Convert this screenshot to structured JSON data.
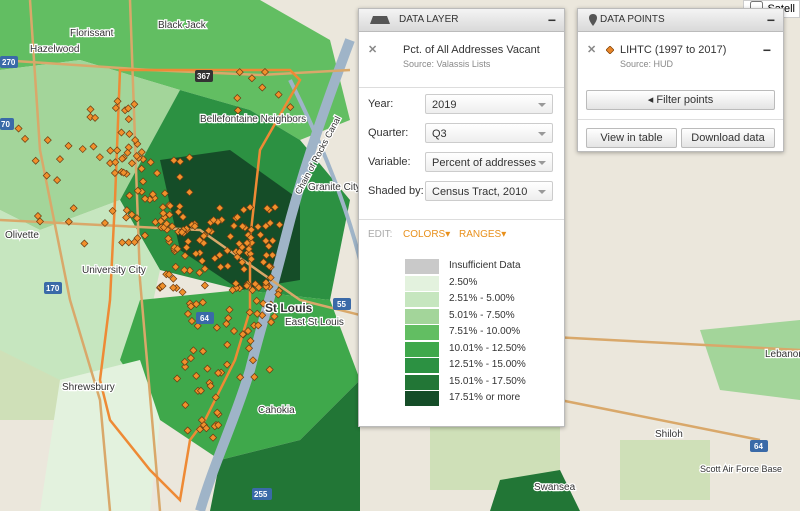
{
  "map_labels": [
    "Black Jack",
    "Florissant",
    "Hazelwood",
    "367",
    "270",
    "Bellefontaine Neighbors",
    "Granite City",
    "Olivette",
    "University City",
    "170",
    "70",
    "St Louis",
    "East St Louis",
    "55",
    "64",
    "Shrewsbury",
    "Cahokia",
    "255",
    "Swansea",
    "Shiloh",
    "Scott Air Force Base",
    "Lebanon",
    "64",
    "Chain of Rocks Canal"
  ],
  "satellite_toggle": "Satell",
  "data_layer": {
    "header": "DATA LAYER",
    "collapse": "−",
    "layer_title": "Pct. of All Addresses Vacant",
    "source": "Source: Valassis Lists",
    "fields": [
      {
        "label": "Year:",
        "value": "2019"
      },
      {
        "label": "Quarter:",
        "value": "Q3"
      },
      {
        "label": "Variable:",
        "value": "Percent of addresses"
      },
      {
        "label": "Shaded by:",
        "value": "Census Tract, 2010"
      }
    ],
    "edit": "EDIT:",
    "colors": "COLORS",
    "ranges": "RANGES",
    "legend": [
      {
        "label": "Insufficient Data",
        "color": "#c9c9c9"
      },
      {
        "label": "2.50%",
        "color": "#e3f2de"
      },
      {
        "label": "2.51% - 5.00%",
        "color": "#c6e6bf"
      },
      {
        "label": "5.01% - 7.50%",
        "color": "#a3d59a"
      },
      {
        "label": "7.51% - 10.00%",
        "color": "#62be62"
      },
      {
        "label": "10.01% - 12.50%",
        "color": "#3fa84b"
      },
      {
        "label": "12.51% - 15.00%",
        "color": "#2c9142"
      },
      {
        "label": "15.01% - 17.50%",
        "color": "#227636"
      },
      {
        "label": "17.51% or more",
        "color": "#154d28"
      }
    ]
  },
  "data_points": {
    "header": "DATA POINTS",
    "collapse": "−",
    "layer_title": "LIHTC (1997 to 2017)",
    "source": "Source: HUD",
    "filter": "Filter points",
    "view_table": "View in table",
    "download": "Download data"
  }
}
